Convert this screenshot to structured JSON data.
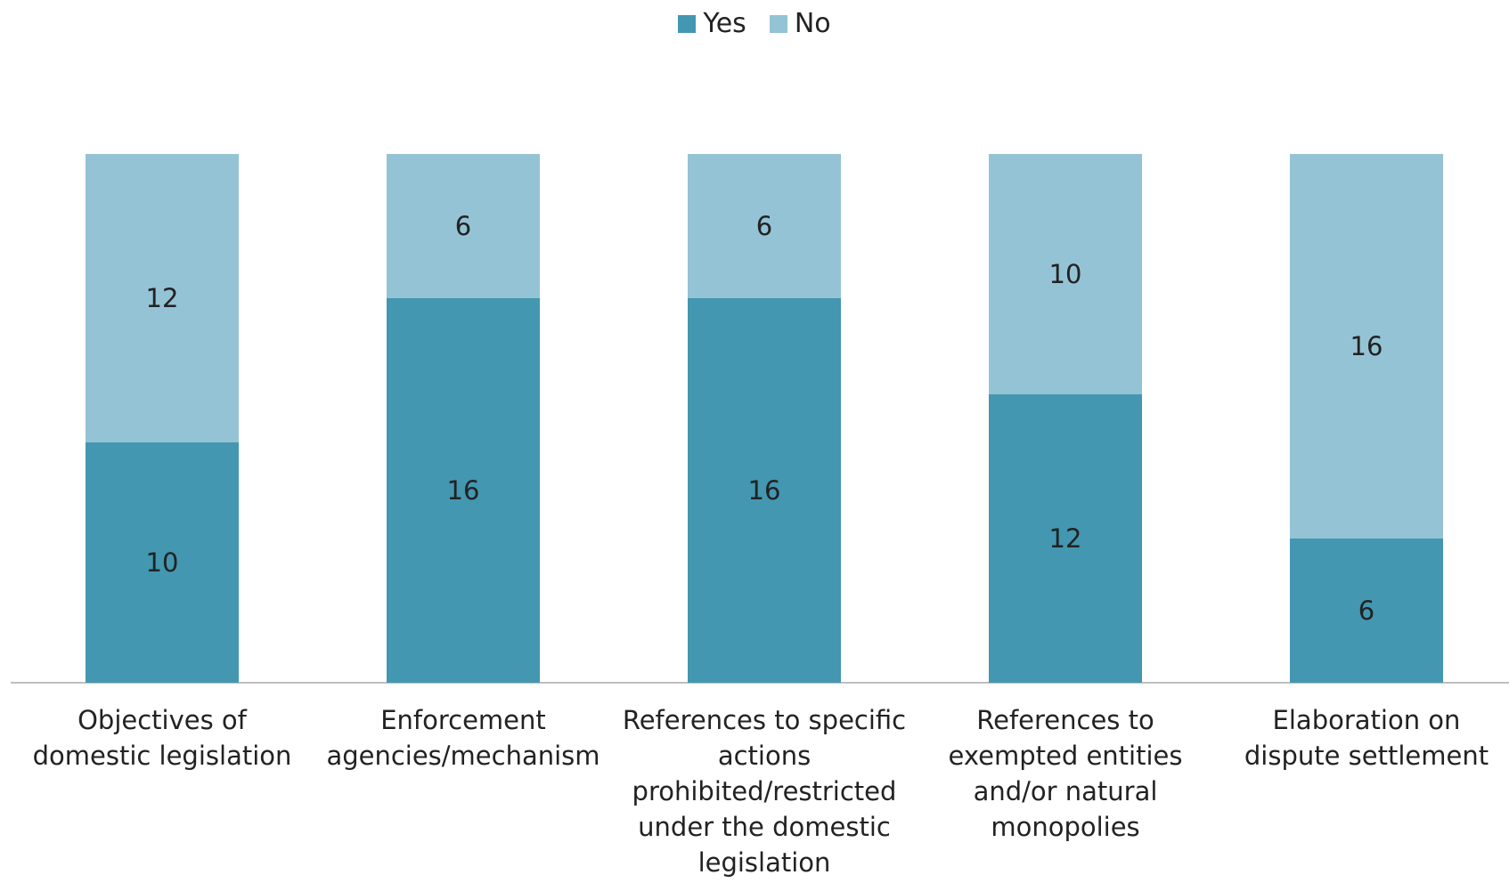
{
  "chart_data": {
    "type": "bar",
    "stacked": true,
    "categories": [
      [
        "Objectives of",
        "domestic legislation"
      ],
      [
        "Enforcement",
        "agencies/mechanism"
      ],
      [
        "References to specific",
        "actions",
        "prohibited/restricted",
        "under the domestic",
        "legislation"
      ],
      [
        "References to",
        "exempted entities",
        "and/or natural",
        "monopolies"
      ],
      [
        "Elaboration on",
        "dispute settlement"
      ]
    ],
    "series": [
      {
        "name": "Yes",
        "color": "#4397B0",
        "values": [
          10,
          16,
          16,
          12,
          6
        ]
      },
      {
        "name": "No",
        "color": "#94C3D5",
        "values": [
          12,
          6,
          6,
          10,
          16
        ]
      }
    ],
    "ylim": [
      0,
      22
    ],
    "grid": false,
    "legend_position": "top-center",
    "data_labels": true
  }
}
